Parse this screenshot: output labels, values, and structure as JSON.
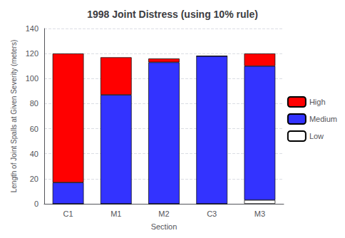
{
  "chart_data": {
    "type": "bar",
    "title": "1998 Joint Distress (using 10% rule)",
    "xlabel": "Section",
    "ylabel": "Length of Joint Spalls at Given Severity (meters)",
    "categories": [
      "C1",
      "M1",
      "M2",
      "C3",
      "M3"
    ],
    "series": [
      {
        "name": "Low",
        "color": "#ffffff",
        "values": [
          0,
          0,
          0,
          0,
          3
        ]
      },
      {
        "name": "Medium",
        "color": "#3333ff",
        "values": [
          17,
          87,
          113,
          118,
          107
        ]
      },
      {
        "name": "High",
        "color": "#ff0000",
        "values": [
          103,
          30,
          3,
          0,
          10
        ]
      }
    ],
    "stacked": true,
    "ylim": [
      0,
      140
    ],
    "yticks": [
      0,
      20,
      40,
      60,
      80,
      100,
      120,
      140
    ],
    "grid": true,
    "legend": "right"
  }
}
